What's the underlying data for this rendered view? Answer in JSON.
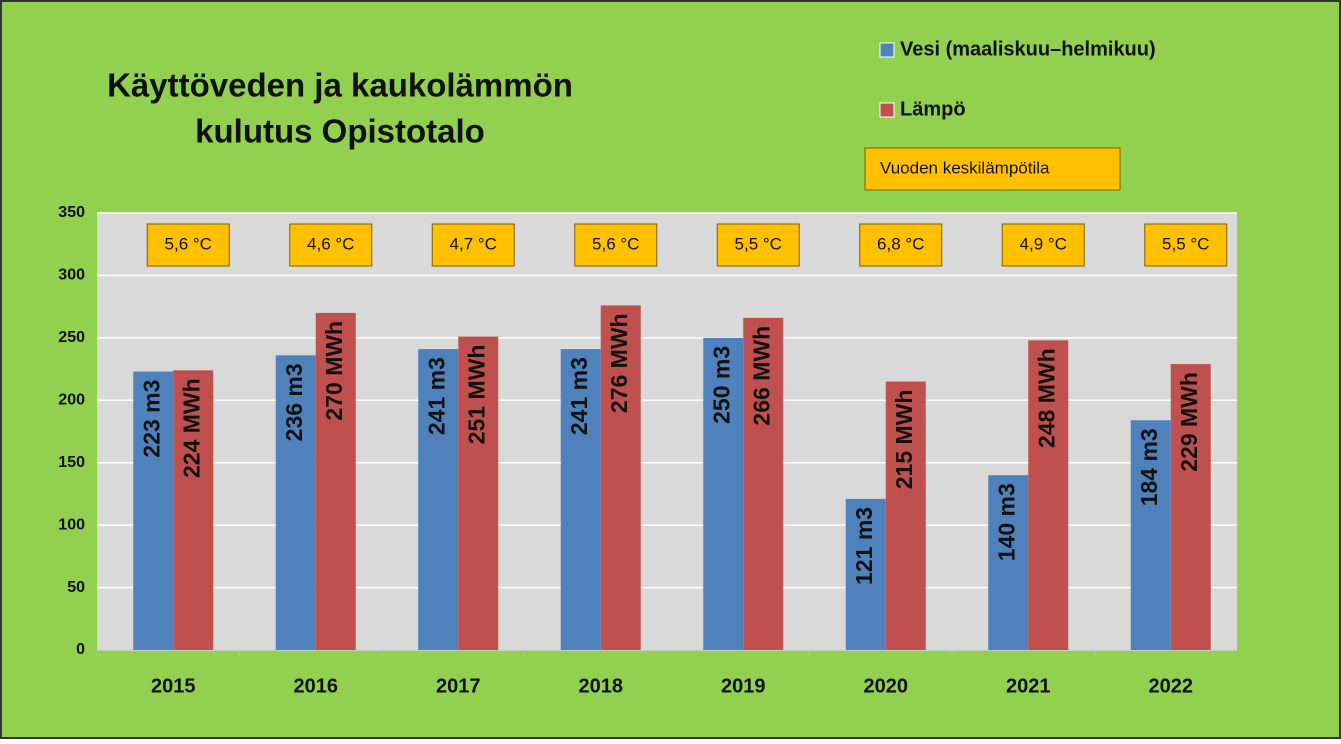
{
  "chart_data": {
    "type": "bar",
    "title": [
      "Käyttöveden ja kaukolämmön",
      "kulutus Opistotalo"
    ],
    "categories": [
      "2015",
      "2016",
      "2017",
      "2018",
      "2019",
      "2020",
      "2021",
      "2022"
    ],
    "series": [
      {
        "name": "Vesi (maaliskuu–helmikuu)",
        "color": "#4f81bd",
        "values": [
          223,
          236,
          241,
          241,
          250,
          121,
          140,
          184
        ],
        "value_labels": [
          "223 m3",
          "236 m3",
          "241 m3",
          "241 m3",
          "250 m3",
          "121 m3",
          "140 m3",
          "184 m3"
        ]
      },
      {
        "name": "Lämpö",
        "color": "#c0504d",
        "values": [
          224,
          270,
          251,
          276,
          266,
          215,
          248,
          229
        ],
        "value_labels": [
          "224 MWh",
          "270 MWh",
          "251 MWh",
          "276 MWh",
          "266 MWh",
          "215 MWh",
          "248 MWh",
          "229 MWh"
        ]
      }
    ],
    "temperature_label": "Vuoden keskilämpötila",
    "temperatures": [
      "5,6 °C",
      "4,6 °C",
      "4,7 °C",
      "5,6 °C",
      "5,5 °C",
      "6,8 °C",
      "4,9 °C",
      "5,5 °C"
    ],
    "ylim": [
      0,
      350
    ],
    "yticks": [
      0,
      50,
      100,
      150,
      200,
      250,
      300,
      350
    ],
    "grid": true
  }
}
